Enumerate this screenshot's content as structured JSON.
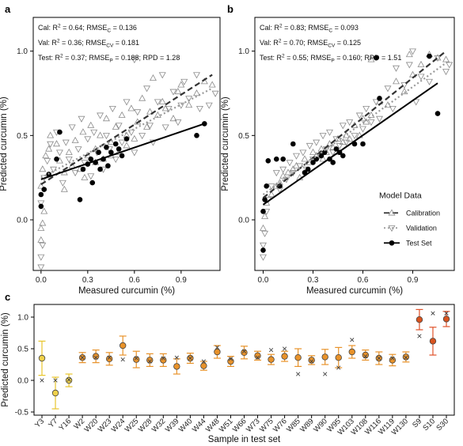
{
  "chart_data": [
    {
      "panel": "a",
      "type": "scatter",
      "xlabel": "Measured curcumin (%)",
      "ylabel": "Predicted curcumin (%)",
      "xlim": [
        -0.05,
        1.15
      ],
      "ylim": [
        -0.3,
        1.2
      ],
      "xticks": [
        "0.0",
        "0.3",
        "0.6",
        "0.9"
      ],
      "yticks": [
        "0.0",
        "0.5",
        "1.0"
      ],
      "xtick_values": [
        0.0,
        0.3,
        0.6,
        0.9
      ],
      "ytick_values": [
        0.0,
        0.5,
        1.0
      ],
      "stats": [
        {
          "prefix": "Cal: R",
          "sup": "2",
          "mid": " = 0.64; RMSE",
          "sub": "C",
          "tail": " = 0.136"
        },
        {
          "prefix": "Val: R",
          "sup": "2",
          "mid": " = 0.36; RMSE",
          "sub": "CV",
          "tail": " = 0.181"
        },
        {
          "prefix": "Test: R",
          "sup": "2",
          "mid": " = 0.37; RMSE",
          "sub": "P",
          "tail": " = 0.188; RPD = 1.28"
        }
      ],
      "fit_lines": {
        "calibration": [
          [
            0.0,
            0.21
          ],
          [
            1.1,
            0.86
          ]
        ],
        "validation": [
          [
            0.0,
            0.25
          ],
          [
            1.1,
            0.78
          ]
        ],
        "test": [
          [
            0.0,
            0.24
          ],
          [
            1.05,
            0.57
          ]
        ]
      },
      "calibration_points": [
        [
          0.0,
          -0.05
        ],
        [
          0.0,
          -0.12
        ],
        [
          0.01,
          -0.02
        ],
        [
          0.02,
          0.05
        ],
        [
          0.0,
          0.2
        ],
        [
          0.01,
          0.3
        ],
        [
          0.03,
          0.38
        ],
        [
          0.05,
          0.42
        ],
        [
          0.06,
          0.5
        ],
        [
          0.1,
          0.45
        ],
        [
          0.12,
          0.35
        ],
        [
          0.15,
          0.28
        ],
        [
          0.18,
          0.4
        ],
        [
          0.2,
          0.32
        ],
        [
          0.22,
          0.47
        ],
        [
          0.25,
          0.3
        ],
        [
          0.27,
          0.52
        ],
        [
          0.3,
          0.38
        ],
        [
          0.32,
          0.56
        ],
        [
          0.35,
          0.42
        ],
        [
          0.38,
          0.5
        ],
        [
          0.4,
          0.36
        ],
        [
          0.42,
          0.6
        ],
        [
          0.45,
          0.46
        ],
        [
          0.48,
          0.55
        ],
        [
          0.5,
          0.4
        ],
        [
          0.52,
          0.62
        ],
        [
          0.55,
          0.5
        ],
        [
          0.58,
          0.66
        ],
        [
          0.6,
          0.48
        ],
        [
          0.62,
          0.58
        ],
        [
          0.65,
          0.72
        ],
        [
          0.68,
          0.55
        ],
        [
          0.7,
          0.64
        ],
        [
          0.72,
          0.84
        ],
        [
          0.75,
          0.62
        ],
        [
          0.78,
          0.7
        ],
        [
          0.8,
          0.66
        ],
        [
          0.85,
          0.6
        ],
        [
          0.88,
          0.76
        ],
        [
          0.9,
          0.8
        ],
        [
          0.95,
          0.68
        ],
        [
          1.0,
          0.75
        ],
        [
          1.05,
          0.82
        ],
        [
          1.1,
          0.8
        ],
        [
          0.35,
          0.34
        ],
        [
          0.28,
          0.25
        ],
        [
          0.15,
          0.18
        ],
        [
          0.45,
          0.38
        ],
        [
          0.55,
          0.44
        ]
      ],
      "validation_points": [
        [
          0.0,
          -0.22
        ],
        [
          0.0,
          -0.28
        ],
        [
          0.01,
          -0.15
        ],
        [
          0.0,
          0.1
        ],
        [
          0.02,
          0.25
        ],
        [
          0.04,
          0.35
        ],
        [
          0.06,
          0.45
        ],
        [
          0.08,
          0.3
        ],
        [
          0.1,
          0.52
        ],
        [
          0.12,
          0.4
        ],
        [
          0.14,
          0.22
        ],
        [
          0.16,
          0.46
        ],
        [
          0.18,
          0.36
        ],
        [
          0.2,
          0.55
        ],
        [
          0.22,
          0.28
        ],
        [
          0.24,
          0.42
        ],
        [
          0.26,
          0.6
        ],
        [
          0.28,
          0.34
        ],
        [
          0.3,
          0.48
        ],
        [
          0.32,
          0.26
        ],
        [
          0.34,
          0.52
        ],
        [
          0.36,
          0.4
        ],
        [
          0.38,
          0.62
        ],
        [
          0.4,
          0.3
        ],
        [
          0.42,
          0.5
        ],
        [
          0.44,
          0.42
        ],
        [
          0.46,
          0.66
        ],
        [
          0.48,
          0.36
        ],
        [
          0.5,
          0.56
        ],
        [
          0.52,
          0.46
        ],
        [
          0.55,
          0.7
        ],
        [
          0.58,
          0.52
        ],
        [
          0.6,
          0.4
        ],
        [
          0.62,
          0.64
        ],
        [
          0.65,
          0.5
        ],
        [
          0.68,
          0.78
        ],
        [
          0.7,
          0.56
        ],
        [
          0.72,
          0.46
        ],
        [
          0.75,
          0.7
        ],
        [
          0.78,
          0.86
        ],
        [
          0.8,
          0.55
        ],
        [
          0.82,
          0.66
        ],
        [
          0.85,
          0.76
        ],
        [
          0.88,
          0.58
        ],
        [
          0.9,
          0.68
        ],
        [
          0.92,
          0.82
        ],
        [
          0.95,
          0.72
        ],
        [
          1.0,
          0.86
        ],
        [
          1.02,
          0.66
        ],
        [
          1.08,
          0.68
        ],
        [
          1.12,
          0.75
        ],
        [
          0.6,
          0.95
        ]
      ],
      "test_points": [
        [
          0.0,
          0.15
        ],
        [
          0.0,
          0.08
        ],
        [
          0.02,
          0.18
        ],
        [
          0.05,
          0.27
        ],
        [
          0.1,
          0.36
        ],
        [
          0.12,
          0.52
        ],
        [
          0.25,
          0.12
        ],
        [
          0.27,
          0.3
        ],
        [
          0.3,
          0.33
        ],
        [
          0.32,
          0.36
        ],
        [
          0.35,
          0.34
        ],
        [
          0.37,
          0.4
        ],
        [
          0.38,
          0.3
        ],
        [
          0.4,
          0.36
        ],
        [
          0.42,
          0.43
        ],
        [
          0.43,
          0.32
        ],
        [
          0.45,
          0.4
        ],
        [
          0.48,
          0.45
        ],
        [
          0.5,
          0.42
        ],
        [
          0.52,
          0.38
        ],
        [
          0.55,
          0.48
        ],
        [
          0.33,
          0.22
        ],
        [
          1.0,
          0.5
        ],
        [
          1.05,
          0.57
        ]
      ]
    },
    {
      "panel": "b",
      "type": "scatter",
      "xlabel": "Measured curcumin (%)",
      "ylabel": "Predicted curcumin (%)",
      "xlim": [
        -0.05,
        1.15
      ],
      "ylim": [
        -0.3,
        1.2
      ],
      "xticks": [
        "0.0",
        "0.3",
        "0.6",
        "0.9"
      ],
      "yticks": [
        "0.0",
        "0.5",
        "1.0"
      ],
      "xtick_values": [
        0.0,
        0.3,
        0.6,
        0.9
      ],
      "ytick_values": [
        0.0,
        0.5,
        1.0
      ],
      "stats": [
        {
          "prefix": "Cal: R",
          "sup": "2",
          "mid": " = 0.83; RMSE",
          "sub": "C",
          "tail": " = 0.093"
        },
        {
          "prefix": "Val: R",
          "sup": "2",
          "mid": " = 0.70; RMSE",
          "sub": "CV",
          "tail": " = 0.125"
        },
        {
          "prefix": "Test: R",
          "sup": "2",
          "mid": " = 0.55; RMSE",
          "sub": "P",
          "tail": " = 0.160; RPD = 1.51"
        }
      ],
      "legend": {
        "title": "Model Data",
        "entries": [
          "Calibration",
          "Validation",
          "Test Set"
        ]
      },
      "fit_lines": {
        "calibration": [
          [
            0.0,
            0.13
          ],
          [
            1.1,
            1.0
          ]
        ],
        "validation": [
          [
            0.0,
            0.15
          ],
          [
            1.1,
            0.93
          ]
        ],
        "test": [
          [
            0.0,
            0.09
          ],
          [
            1.05,
            0.81
          ]
        ]
      },
      "calibration_points": [
        [
          0.0,
          -0.05
        ],
        [
          0.01,
          0.02
        ],
        [
          0.02,
          0.1
        ],
        [
          0.05,
          0.15
        ],
        [
          0.08,
          0.2
        ],
        [
          0.1,
          0.22
        ],
        [
          0.12,
          0.26
        ],
        [
          0.15,
          0.28
        ],
        [
          0.18,
          0.3
        ],
        [
          0.2,
          0.32
        ],
        [
          0.22,
          0.25
        ],
        [
          0.25,
          0.36
        ],
        [
          0.28,
          0.34
        ],
        [
          0.3,
          0.4
        ],
        [
          0.32,
          0.38
        ],
        [
          0.35,
          0.42
        ],
        [
          0.38,
          0.4
        ],
        [
          0.4,
          0.45
        ],
        [
          0.42,
          0.43
        ],
        [
          0.45,
          0.48
        ],
        [
          0.48,
          0.46
        ],
        [
          0.5,
          0.5
        ],
        [
          0.52,
          0.48
        ],
        [
          0.55,
          0.56
        ],
        [
          0.58,
          0.5
        ],
        [
          0.6,
          0.6
        ],
        [
          0.62,
          0.58
        ],
        [
          0.65,
          0.62
        ],
        [
          0.7,
          0.7
        ],
        [
          0.75,
          0.68
        ],
        [
          0.8,
          0.82
        ],
        [
          0.85,
          0.76
        ],
        [
          0.88,
          0.98
        ],
        [
          0.9,
          0.86
        ],
        [
          0.95,
          0.92
        ],
        [
          1.0,
          0.98
        ],
        [
          1.05,
          0.96
        ],
        [
          1.1,
          0.95
        ],
        [
          0.65,
          0.95
        ],
        [
          0.36,
          0.36
        ],
        [
          0.44,
          0.4
        ]
      ],
      "validation_points": [
        [
          0.0,
          -0.22
        ],
        [
          0.0,
          -0.15
        ],
        [
          0.01,
          -0.08
        ],
        [
          0.02,
          0.05
        ],
        [
          0.03,
          0.12
        ],
        [
          0.05,
          0.2
        ],
        [
          0.08,
          0.28
        ],
        [
          0.1,
          0.18
        ],
        [
          0.12,
          0.3
        ],
        [
          0.14,
          0.24
        ],
        [
          0.16,
          0.34
        ],
        [
          0.18,
          0.28
        ],
        [
          0.2,
          0.38
        ],
        [
          0.22,
          0.32
        ],
        [
          0.24,
          0.4
        ],
        [
          0.26,
          0.3
        ],
        [
          0.28,
          0.44
        ],
        [
          0.3,
          0.36
        ],
        [
          0.32,
          0.46
        ],
        [
          0.34,
          0.38
        ],
        [
          0.36,
          0.5
        ],
        [
          0.38,
          0.42
        ],
        [
          0.4,
          0.52
        ],
        [
          0.42,
          0.4
        ],
        [
          0.44,
          0.48
        ],
        [
          0.46,
          0.44
        ],
        [
          0.48,
          0.56
        ],
        [
          0.5,
          0.46
        ],
        [
          0.52,
          0.58
        ],
        [
          0.55,
          0.5
        ],
        [
          0.58,
          0.62
        ],
        [
          0.6,
          0.54
        ],
        [
          0.62,
          0.66
        ],
        [
          0.65,
          0.58
        ],
        [
          0.68,
          0.7
        ],
        [
          0.7,
          0.6
        ],
        [
          0.75,
          0.78
        ],
        [
          0.78,
          0.66
        ],
        [
          0.8,
          0.9
        ],
        [
          0.85,
          0.8
        ],
        [
          0.88,
          0.92
        ],
        [
          0.9,
          1.0
        ],
        [
          0.95,
          0.85
        ],
        [
          1.0,
          0.82
        ],
        [
          1.05,
          0.96
        ],
        [
          1.1,
          0.88
        ],
        [
          1.12,
          0.92
        ],
        [
          0.92,
          0.7
        ]
      ],
      "test_points": [
        [
          0.0,
          -0.18
        ],
        [
          0.0,
          0.05
        ],
        [
          0.01,
          0.12
        ],
        [
          0.02,
          0.2
        ],
        [
          0.03,
          0.35
        ],
        [
          0.08,
          0.36
        ],
        [
          0.1,
          0.2
        ],
        [
          0.12,
          0.36
        ],
        [
          0.18,
          0.45
        ],
        [
          0.25,
          0.28
        ],
        [
          0.27,
          0.3
        ],
        [
          0.3,
          0.34
        ],
        [
          0.32,
          0.36
        ],
        [
          0.35,
          0.38
        ],
        [
          0.37,
          0.4
        ],
        [
          0.4,
          0.36
        ],
        [
          0.42,
          0.34
        ],
        [
          0.44,
          0.42
        ],
        [
          0.46,
          0.4
        ],
        [
          0.48,
          0.38
        ],
        [
          0.55,
          0.45
        ],
        [
          0.6,
          0.45
        ],
        [
          0.68,
          0.96
        ],
        [
          0.7,
          0.72
        ],
        [
          1.0,
          0.97
        ],
        [
          1.05,
          0.63
        ]
      ]
    },
    {
      "panel": "c",
      "type": "scatter",
      "xlabel": "Sample in test set",
      "ylabel": "Predicted curcumin (%)",
      "ylim": [
        -0.55,
        1.2
      ],
      "yticks": [
        "-0.5",
        "0.0",
        "0.5",
        "1.0"
      ],
      "ytick_values": [
        -0.5,
        0.0,
        0.5,
        1.0
      ],
      "categories": [
        "Y3",
        "Y7",
        "Y16",
        "W2",
        "W20",
        "W23",
        "W24",
        "W25",
        "W28",
        "W32",
        "W39",
        "W40",
        "W44",
        "W48",
        "W51",
        "W66",
        "W73",
        "W75",
        "W76",
        "W85",
        "W89",
        "W90",
        "W95",
        "W103",
        "W108",
        "W116",
        "W119",
        "W130",
        "S9",
        "S10",
        "S30"
      ],
      "predicted": [
        0.35,
        -0.2,
        0.0,
        0.36,
        0.38,
        0.34,
        0.55,
        0.33,
        0.32,
        0.32,
        0.22,
        0.35,
        0.23,
        0.45,
        0.3,
        0.44,
        0.39,
        0.33,
        0.38,
        0.36,
        0.32,
        0.37,
        0.36,
        0.45,
        0.4,
        0.35,
        0.32,
        0.37,
        0.96,
        0.62,
        0.97
      ],
      "lower": [
        0.08,
        -0.45,
        -0.1,
        0.28,
        0.28,
        0.24,
        0.4,
        0.2,
        0.22,
        0.22,
        0.1,
        0.27,
        0.16,
        0.35,
        0.22,
        0.34,
        0.32,
        0.25,
        0.3,
        0.22,
        0.25,
        0.25,
        0.2,
        0.35,
        0.32,
        0.25,
        0.23,
        0.29,
        0.8,
        0.4,
        0.85
      ],
      "upper": [
        0.62,
        0.05,
        0.1,
        0.44,
        0.48,
        0.44,
        0.7,
        0.46,
        0.42,
        0.42,
        0.34,
        0.43,
        0.3,
        0.55,
        0.38,
        0.54,
        0.46,
        0.41,
        0.46,
        0.5,
        0.39,
        0.49,
        0.52,
        0.55,
        0.48,
        0.45,
        0.41,
        0.45,
        1.12,
        0.84,
        1.09
      ],
      "measured": [
        0.0,
        0.0,
        0.01,
        0.36,
        0.36,
        0.36,
        0.33,
        0.35,
        0.3,
        0.35,
        0.36,
        0.35,
        0.3,
        0.52,
        0.34,
        0.46,
        0.36,
        0.48,
        0.5,
        0.1,
        0.3,
        0.1,
        0.2,
        0.64,
        0.38,
        0.35,
        0.35,
        0.36,
        0.7,
        1.06,
        1.06
      ],
      "marker_colors": [
        "#f0d14a",
        "#f0d14a",
        "#f0d14a",
        "#e8922a",
        "#e8922a",
        "#e8922a",
        "#e8922a",
        "#e8922a",
        "#e8922a",
        "#e8922a",
        "#e8922a",
        "#e8922a",
        "#e8922a",
        "#e8922a",
        "#e8922a",
        "#e8922a",
        "#e8922a",
        "#e8922a",
        "#e8922a",
        "#e8922a",
        "#e8922a",
        "#e8922a",
        "#e8922a",
        "#e8922a",
        "#e8922a",
        "#e8922a",
        "#e8922a",
        "#e8922a",
        "#d9531e",
        "#d9531e",
        "#d9531e"
      ],
      "errorbar_colors": [
        "#e8c52c",
        "#e8c52c",
        "#e8c52c",
        "#e8922a",
        "#e8922a",
        "#e8922a",
        "#e8922a",
        "#e8922a",
        "#e8922a",
        "#e8922a",
        "#e8922a",
        "#e8922a",
        "#e8922a",
        "#e8922a",
        "#e8922a",
        "#e8922a",
        "#e8922a",
        "#e8922a",
        "#e8922a",
        "#e8922a",
        "#e8922a",
        "#e8922a",
        "#e8922a",
        "#e8922a",
        "#e8922a",
        "#e8922a",
        "#e8922a",
        "#e8922a",
        "#e0522a",
        "#e0522a",
        "#e0522a"
      ]
    }
  ],
  "panel_labels": [
    "a",
    "b",
    "c"
  ]
}
